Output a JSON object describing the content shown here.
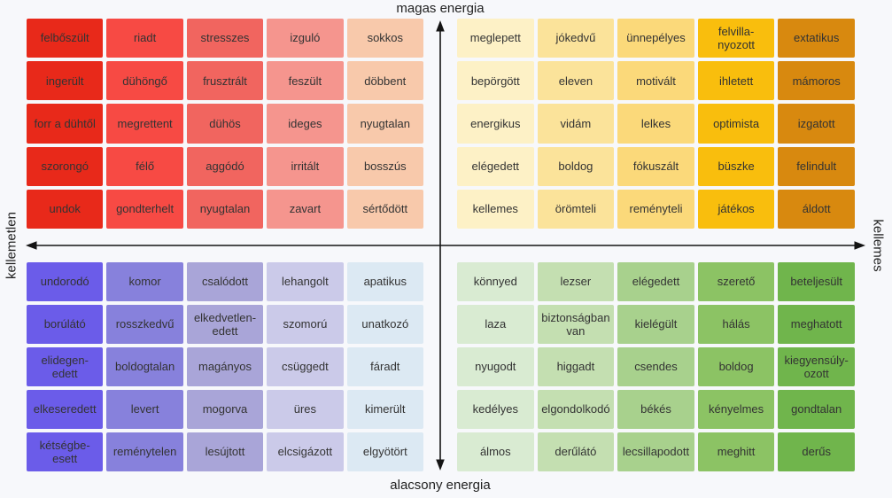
{
  "axes": {
    "top": "magas energia",
    "bottom": "alacsony energia",
    "left": "kellemetlen",
    "right": "kellemes"
  },
  "arrow_color": "#141414",
  "quadrants": [
    {
      "position": "top-left",
      "column_colors": [
        "#e8291a",
        "#f74a44",
        "#f1655f",
        "#f5958e",
        "#f8c9ab"
      ],
      "rows": [
        [
          "felbőszült",
          "riadt",
          "stresszes",
          "izguló",
          "sokkos"
        ],
        [
          "ingerült",
          "dühöngő",
          "frusztrált",
          "feszült",
          "döbbent"
        ],
        [
          "forr a dühtől",
          "megrettent",
          "dühös",
          "ideges",
          "nyugtalan"
        ],
        [
          "szorongó",
          "félő",
          "aggódó",
          "irritált",
          "bosszús"
        ],
        [
          "undok",
          "gondterhelt",
          "nyugtalan",
          "zavart",
          "sértődött"
        ]
      ]
    },
    {
      "position": "top-right",
      "column_colors": [
        "#fdf1c6",
        "#fbe39a",
        "#fbd97a",
        "#f9be0d",
        "#d8890f"
      ],
      "rows": [
        [
          "meglepett",
          "jókedvű",
          "ünnepélyes",
          "felvilla-\nnyozott",
          "extatikus"
        ],
        [
          "bepörgött",
          "eleven",
          "motivált",
          "ihletett",
          "mámoros"
        ],
        [
          "energikus",
          "vidám",
          "lelkes",
          "optimista",
          "izgatott"
        ],
        [
          "elégedett",
          "boldog",
          "fókuszált",
          "büszke",
          "felindult"
        ],
        [
          "kellemes",
          "örömteli",
          "reményteli",
          "játékos",
          "áldott"
        ]
      ]
    },
    {
      "position": "bottom-left",
      "column_colors": [
        "#6b5ce9",
        "#8781dc",
        "#a9a5d8",
        "#cbcae9",
        "#dce9f3"
      ],
      "rows": [
        [
          "undorodó",
          "komor",
          "csalódott",
          "lehangolt",
          "apatikus"
        ],
        [
          "borúlátó",
          "rosszkedvű",
          "elkedvetlen-\nedett",
          "szomorú",
          "unatkozó"
        ],
        [
          "elidegen-\nedett",
          "boldogtalan",
          "magányos",
          "csüggedt",
          "fáradt"
        ],
        [
          "elkeseredett",
          "levert",
          "mogorva",
          "üres",
          "kimerült"
        ],
        [
          "kétségbe-\nesett",
          "reménytelen",
          "lesújtott",
          "elcsigázott",
          "elgyötört"
        ]
      ]
    },
    {
      "position": "bottom-right",
      "column_colors": [
        "#d9ebd2",
        "#c4dfb1",
        "#a8d18d",
        "#8cc364",
        "#70b54c"
      ],
      "rows": [
        [
          "könnyed",
          "lezser",
          "elégedett",
          "szerető",
          "beteljesült"
        ],
        [
          "laza",
          "biztonságban\nvan",
          "kielégült",
          "hálás",
          "meghatott"
        ],
        [
          "nyugodt",
          "higgadt",
          "csendes",
          "boldog",
          "kiegyensúly-\nozott"
        ],
        [
          "kedélyes",
          "elgondolkodó",
          "békés",
          "kényelmes",
          "gondtalan"
        ],
        [
          "álmos",
          "derűlátó",
          "lecsillapodott",
          "meghitt",
          "derűs"
        ]
      ]
    }
  ]
}
